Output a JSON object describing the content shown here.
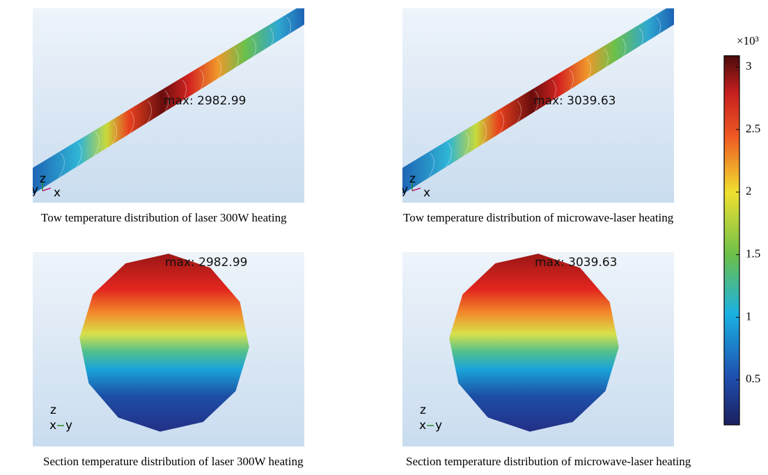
{
  "panels": [
    {
      "kind": "tow",
      "max_label": "max: 2982.99",
      "axes": [
        "y",
        "z",
        "x"
      ],
      "caption": "Tow temperature distribution of laser 300W heating"
    },
    {
      "kind": "tow",
      "max_label": "max: 3039.63",
      "axes": [
        "y",
        "z",
        "x"
      ],
      "caption": "Tow temperature distribution of microwave-laser heating"
    },
    {
      "kind": "section",
      "max_label": "max: 2982.99",
      "axes": [
        "z",
        "x",
        "y"
      ],
      "caption": "Section temperature distribution of laser 300W heating"
    },
    {
      "kind": "section",
      "max_label": "max: 3039.63",
      "axes": [
        "z",
        "x",
        "y"
      ],
      "caption": "Section temperature distribution of microwave-laser heating"
    }
  ],
  "colorbar": {
    "unit": "×10³",
    "range": [
      0.14,
      3.09
    ],
    "ticks": [
      0.5,
      1,
      1.5,
      2,
      2.5,
      3
    ]
  }
}
